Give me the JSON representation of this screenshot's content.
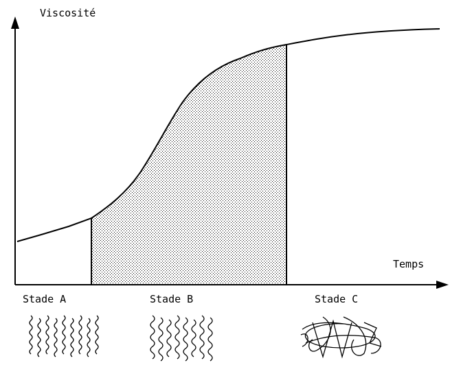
{
  "y_axis_label": "Viscosité",
  "x_axis_label": "Temps",
  "stages": [
    "Stade A",
    "Stade B",
    "Stade C"
  ]
}
